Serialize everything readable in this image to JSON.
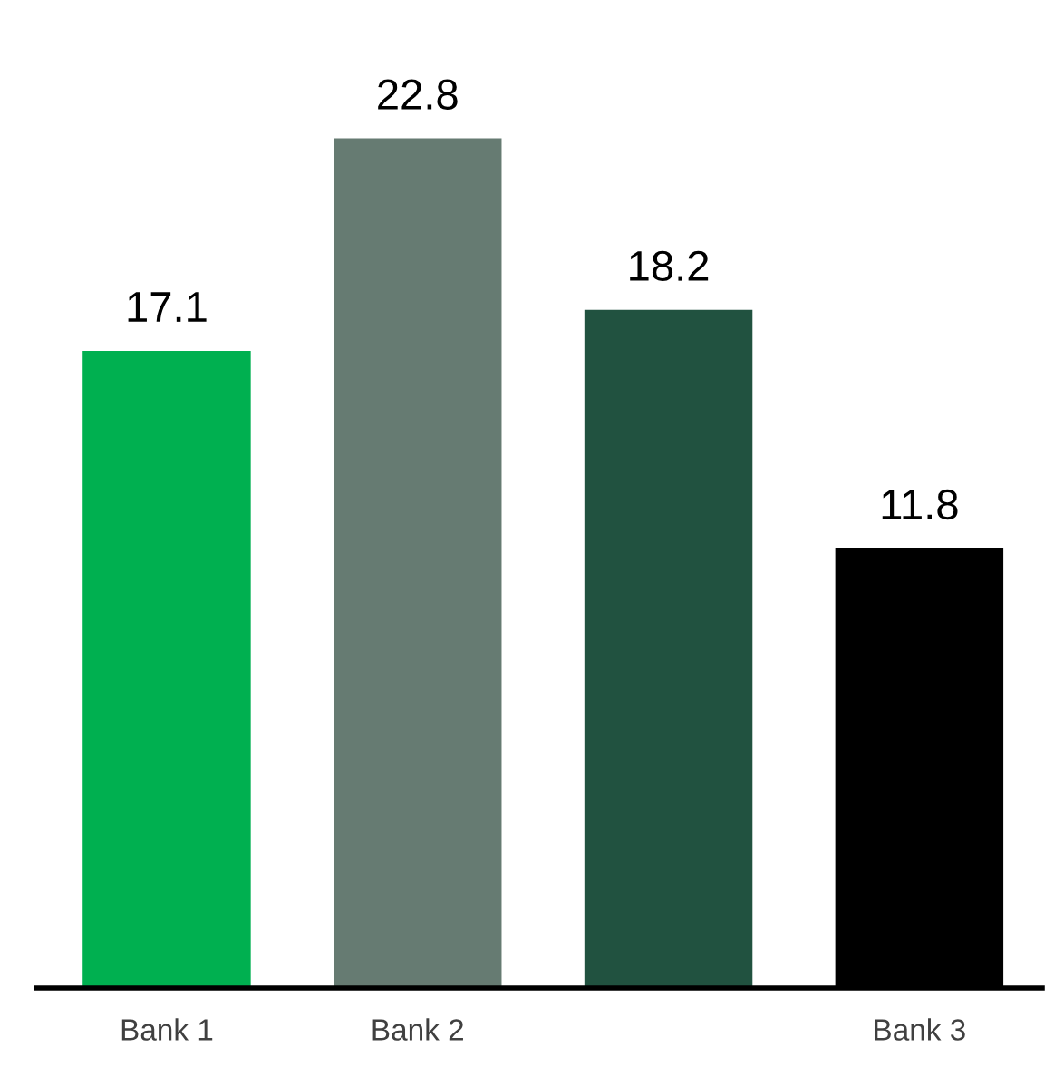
{
  "chart_data": {
    "type": "bar",
    "categories": [
      "Bank 1",
      "Bank 2",
      null,
      "Bank 3"
    ],
    "values": [
      17.1,
      22.8,
      18.2,
      11.8
    ],
    "colors": [
      "#00b050",
      "#667b72",
      "#215240",
      "#000000"
    ],
    "data_labels": true
  }
}
